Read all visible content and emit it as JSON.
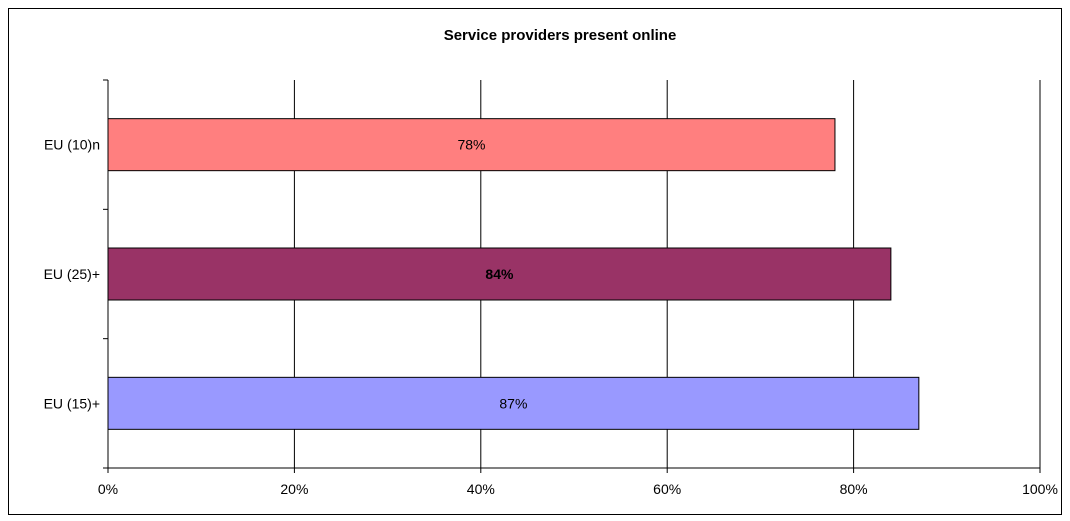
{
  "chart_data": {
    "type": "bar",
    "orientation": "horizontal",
    "title": "Service providers present online",
    "categories": [
      "EU (10)n",
      "EU (25)+",
      "EU (15)+"
    ],
    "values": [
      78,
      84,
      87
    ],
    "data_labels": [
      "78%",
      "84%",
      "87%"
    ],
    "bold_labels": [
      false,
      true,
      false
    ],
    "colors": [
      "#ff7f7f",
      "#993366",
      "#9999ff"
    ],
    "xlim": [
      0,
      100
    ],
    "x_ticks": [
      0,
      20,
      40,
      60,
      80,
      100
    ],
    "x_tick_labels": [
      "0%",
      "20%",
      "40%",
      "60%",
      "80%",
      "100%"
    ],
    "grid": true,
    "legend": "none"
  }
}
